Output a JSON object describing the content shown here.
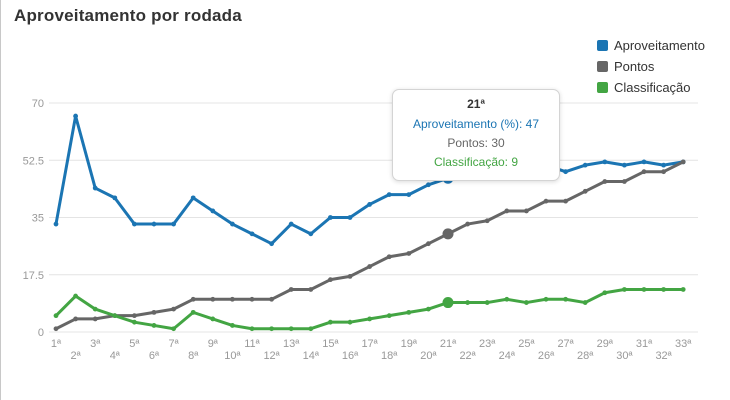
{
  "page": {
    "title": "Aproveitamento por rodada"
  },
  "colors": {
    "aproveitamento": "#1b75b3",
    "pontos": "#666666",
    "classificacao": "#43a543",
    "grid": "#e4e4e4",
    "axis_text": "#999999"
  },
  "legend": {
    "items": [
      {
        "label": "Aproveitamento",
        "color": "#1b75b3"
      },
      {
        "label": "Pontos",
        "color": "#666666"
      },
      {
        "label": "Classificação",
        "color": "#43a543"
      }
    ]
  },
  "tooltip": {
    "header": "21ª",
    "lines": [
      {
        "label": "Aproveitamento (%)",
        "value": 47,
        "color": "#1b75b3"
      },
      {
        "label": "Pontos",
        "value": 30,
        "color": "#666666"
      },
      {
        "label": "Classificação",
        "value": 9,
        "color": "#43a543"
      }
    ]
  },
  "chart_data": {
    "type": "line",
    "title": "Aproveitamento por rodada",
    "categories": [
      "1ª",
      "2ª",
      "3ª",
      "4ª",
      "5ª",
      "6ª",
      "7ª",
      "8ª",
      "9ª",
      "10ª",
      "11ª",
      "12ª",
      "13ª",
      "14ª",
      "15ª",
      "16ª",
      "17ª",
      "18ª",
      "19ª",
      "20ª",
      "21ª",
      "22ª",
      "23ª",
      "24ª",
      "25ª",
      "26ª",
      "27ª",
      "28ª",
      "29ª",
      "30ª",
      "31ª",
      "32ª",
      "33ª"
    ],
    "series": [
      {
        "name": "Aproveitamento",
        "color": "#1b75b3",
        "values": [
          33,
          66,
          44,
          41,
          33,
          33,
          33,
          41,
          37,
          33,
          30,
          27,
          33,
          30,
          35,
          35,
          39,
          42,
          42,
          45,
          47,
          50,
          49,
          51,
          49,
          51,
          49,
          51,
          52,
          51,
          52,
          51,
          52
        ]
      },
      {
        "name": "Pontos",
        "color": "#666666",
        "values": [
          1,
          4,
          4,
          5,
          5,
          6,
          7,
          10,
          10,
          10,
          10,
          10,
          13,
          13,
          16,
          17,
          20,
          23,
          24,
          27,
          30,
          33,
          34,
          37,
          37,
          40,
          40,
          43,
          46,
          46,
          49,
          49,
          52
        ]
      },
      {
        "name": "Classificação",
        "color": "#43a543",
        "values": [
          5,
          11,
          7,
          5,
          3,
          2,
          1,
          6,
          4,
          2,
          1,
          1,
          1,
          1,
          3,
          3,
          4,
          5,
          6,
          7,
          9,
          9,
          9,
          10,
          9,
          10,
          10,
          9,
          12,
          13,
          13,
          13,
          13
        ]
      }
    ],
    "yticks": [
      0,
      17.5,
      35,
      52.5,
      70
    ],
    "ylim": [
      0,
      70
    ],
    "grid": true,
    "legend_position": "top-right",
    "highlight_category_index": 20
  }
}
